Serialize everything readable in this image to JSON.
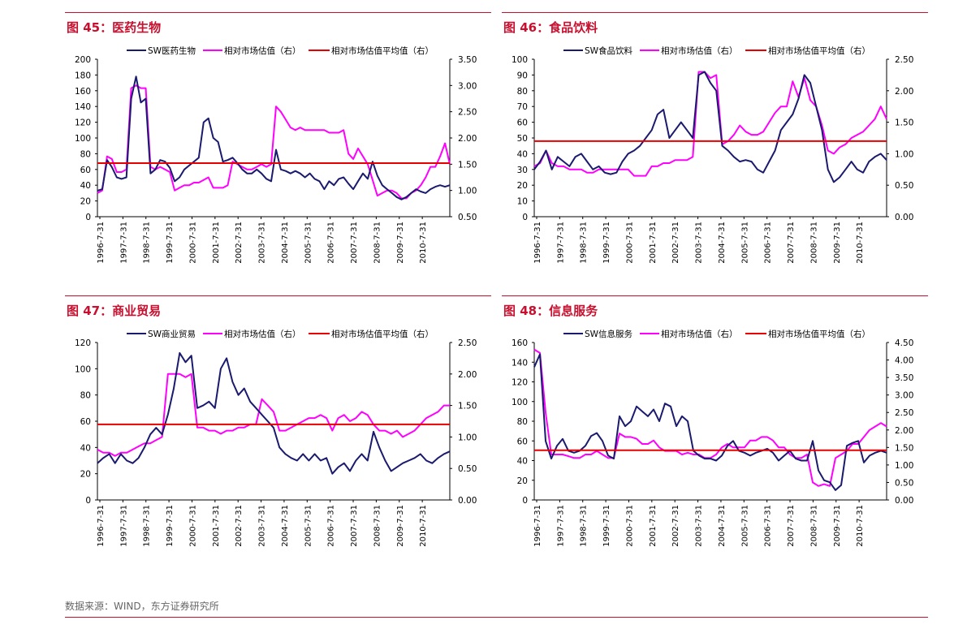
{
  "footer": {
    "source": "数据来源：WIND，东方证券研究所"
  },
  "chart_data": [
    {
      "type": "line",
      "title": "图 45：医药生物",
      "series": [
        {
          "name": "SW医药生物",
          "axis": "left",
          "color": "#1a1a6e",
          "values": [
            33,
            35,
            72,
            63,
            50,
            48,
            50,
            150,
            178,
            145,
            150,
            55,
            60,
            72,
            70,
            62,
            45,
            50,
            60,
            65,
            70,
            75,
            120,
            125,
            100,
            95,
            70,
            72,
            75,
            68,
            60,
            55,
            55,
            60,
            55,
            48,
            45,
            85,
            60,
            58,
            55,
            58,
            55,
            50,
            55,
            48,
            45,
            35,
            45,
            40,
            48,
            50,
            42,
            35,
            45,
            55,
            48,
            70,
            52,
            40,
            35,
            30,
            25,
            22,
            25,
            30,
            35,
            32,
            30,
            35,
            38,
            40,
            38,
            40
          ]
        },
        {
          "name": "相对市场估值（右）",
          "axis": "right",
          "color": "#ff00ff",
          "values": [
            0.95,
            1.0,
            1.65,
            1.6,
            1.35,
            1.35,
            1.4,
            2.95,
            3.0,
            2.95,
            2.95,
            1.45,
            1.4,
            1.45,
            1.4,
            1.35,
            1.0,
            1.05,
            1.1,
            1.1,
            1.15,
            1.15,
            1.2,
            1.25,
            1.05,
            1.05,
            1.05,
            1.1,
            1.55,
            1.5,
            1.45,
            1.4,
            1.4,
            1.45,
            1.5,
            1.45,
            1.5,
            2.6,
            2.5,
            2.35,
            2.2,
            2.15,
            2.2,
            2.15,
            2.15,
            2.15,
            2.15,
            2.15,
            2.1,
            2.1,
            2.1,
            2.15,
            1.7,
            1.6,
            1.8,
            1.65,
            1.5,
            1.2,
            0.9,
            0.95,
            1.0,
            1.0,
            0.95,
            0.85,
            0.85,
            0.95,
            1.0,
            1.1,
            1.25,
            1.45,
            1.45,
            1.65,
            1.9,
            1.5
          ]
        },
        {
          "name": "相对市场估值平均值（右）",
          "axis": "right",
          "color": "#e60000",
          "values": [
            1.52,
            1.52
          ]
        }
      ],
      "x_ticks": [
        "1996-7-31",
        "1997-7-31",
        "1998-7-31",
        "1999-7-31",
        "2000-7-31",
        "2001-7-31",
        "2002-7-31",
        "2003-7-31",
        "2004-7-31",
        "2005-7-31",
        "2006-7-31",
        "2007-7-31",
        "2008-7-31",
        "2009-7-31",
        "2010-7-31"
      ],
      "y_left": {
        "ticks": [
          "0",
          "20",
          "40",
          "60",
          "80",
          "100",
          "120",
          "140",
          "160",
          "180",
          "200"
        ],
        "min": 0,
        "max": 200
      },
      "y_right": {
        "ticks": [
          "0.50",
          "1.00",
          "1.50",
          "2.00",
          "2.50",
          "3.00",
          "3.50"
        ],
        "min": 0.5,
        "max": 3.5
      },
      "legend_position": "top"
    },
    {
      "type": "line",
      "title": "图 46：食品饮料",
      "series": [
        {
          "name": "SW食品饮料",
          "axis": "left",
          "color": "#1a1a6e",
          "values": [
            30,
            35,
            42,
            30,
            38,
            35,
            32,
            38,
            40,
            35,
            30,
            32,
            28,
            27,
            28,
            35,
            40,
            42,
            45,
            50,
            55,
            65,
            68,
            50,
            55,
            60,
            55,
            50,
            90,
            92,
            85,
            80,
            45,
            42,
            38,
            35,
            36,
            35,
            30,
            28,
            35,
            42,
            55,
            60,
            65,
            75,
            90,
            85,
            70,
            55,
            30,
            22,
            25,
            30,
            35,
            30,
            28,
            35,
            38,
            40,
            36
          ]
        },
        {
          "name": "相对市场估值（右）",
          "axis": "right",
          "color": "#ff00ff",
          "values": [
            0.8,
            0.85,
            1.05,
            0.85,
            0.8,
            0.8,
            0.75,
            0.75,
            0.75,
            0.7,
            0.7,
            0.75,
            0.75,
            0.75,
            0.75,
            0.75,
            0.75,
            0.65,
            0.65,
            0.65,
            0.8,
            0.8,
            0.85,
            0.85,
            0.9,
            0.9,
            0.9,
            0.95,
            2.3,
            2.3,
            2.2,
            2.25,
            1.15,
            1.2,
            1.3,
            1.45,
            1.35,
            1.3,
            1.3,
            1.35,
            1.5,
            1.65,
            1.75,
            1.75,
            2.15,
            1.9,
            2.2,
            1.85,
            1.75,
            1.45,
            1.05,
            1.0,
            1.1,
            1.15,
            1.25,
            1.3,
            1.35,
            1.45,
            1.55,
            1.75,
            1.55
          ]
        },
        {
          "name": "相对市场估值平均值（右）",
          "axis": "right",
          "color": "#e60000",
          "values": [
            1.2,
            1.2
          ]
        }
      ],
      "x_ticks": [
        "1996-7-31",
        "1997-7-31",
        "1998-7-31",
        "1999-7-31",
        "2000-7-31",
        "2001-7-31",
        "2002-7-31",
        "2003-7-31",
        "2004-7-31",
        "2005-7-31",
        "2006-7-31",
        "2007-7-31",
        "2008-7-31",
        "2009-7-31",
        "2010-7-31"
      ],
      "y_left": {
        "ticks": [
          "0",
          "10",
          "20",
          "30",
          "40",
          "50",
          "60",
          "70",
          "80",
          "90",
          "100"
        ],
        "min": 0,
        "max": 100
      },
      "y_right": {
        "ticks": [
          "0.00",
          "0.50",
          "1.00",
          "1.50",
          "2.00",
          "2.50"
        ],
        "min": 0,
        "max": 2.5
      },
      "legend_position": "top"
    },
    {
      "type": "line",
      "title": "图 47：商业贸易",
      "series": [
        {
          "name": "SW商业贸易",
          "axis": "left",
          "color": "#1a1a6e",
          "values": [
            28,
            32,
            35,
            28,
            35,
            30,
            28,
            32,
            40,
            50,
            55,
            50,
            65,
            85,
            112,
            105,
            110,
            70,
            72,
            75,
            70,
            100,
            108,
            90,
            80,
            85,
            75,
            70,
            65,
            60,
            55,
            40,
            35,
            32,
            30,
            35,
            30,
            35,
            30,
            32,
            20,
            25,
            28,
            22,
            30,
            35,
            30,
            52,
            40,
            30,
            22,
            25,
            28,
            30,
            32,
            35,
            30,
            28,
            32,
            35,
            37
          ]
        },
        {
          "name": "相对市场估值（右）",
          "axis": "right",
          "color": "#ff00ff",
          "values": [
            0.8,
            0.75,
            0.75,
            0.7,
            0.75,
            0.75,
            0.8,
            0.85,
            0.9,
            0.9,
            0.95,
            1.0,
            2.0,
            2.0,
            2.0,
            1.95,
            2.0,
            1.15,
            1.15,
            1.1,
            1.1,
            1.05,
            1.1,
            1.1,
            1.15,
            1.15,
            1.2,
            1.2,
            1.6,
            1.5,
            1.4,
            1.1,
            1.1,
            1.15,
            1.2,
            1.25,
            1.3,
            1.3,
            1.35,
            1.3,
            1.1,
            1.3,
            1.35,
            1.25,
            1.3,
            1.4,
            1.35,
            1.2,
            1.1,
            1.1,
            1.05,
            1.1,
            1.0,
            1.05,
            1.1,
            1.2,
            1.3,
            1.35,
            1.4,
            1.5,
            1.5
          ]
        },
        {
          "name": "相对市场估值平均值（右）",
          "axis": "right",
          "color": "#e60000",
          "values": [
            1.2,
            1.2
          ]
        }
      ],
      "x_ticks": [
        "1996-7-31",
        "1997-7-31",
        "1998-7-31",
        "1999-7-31",
        "2000-7-31",
        "2001-7-31",
        "2002-7-31",
        "2003-7-31",
        "2004-7-31",
        "2005-7-31",
        "2006-7-31",
        "2007-7-31",
        "2008-7-31",
        "2009-7-31",
        "2010-7-31"
      ],
      "y_left": {
        "ticks": [
          "0",
          "20",
          "40",
          "60",
          "80",
          "100",
          "120"
        ],
        "min": 0,
        "max": 120
      },
      "y_right": {
        "ticks": [
          "0.00",
          "0.50",
          "1.00",
          "1.50",
          "2.00",
          "2.50"
        ],
        "min": 0,
        "max": 2.5
      },
      "legend_position": "top"
    },
    {
      "type": "line",
      "title": "图 48：信息服务",
      "series": [
        {
          "name": "SW信息服务",
          "axis": "left",
          "color": "#1a1a6e",
          "values": [
            135,
            148,
            60,
            42,
            55,
            62,
            50,
            48,
            50,
            55,
            65,
            68,
            60,
            45,
            42,
            85,
            75,
            80,
            95,
            90,
            85,
            92,
            80,
            98,
            95,
            75,
            85,
            80,
            50,
            45,
            42,
            42,
            40,
            45,
            55,
            60,
            50,
            48,
            45,
            48,
            50,
            52,
            48,
            40,
            45,
            50,
            42,
            40,
            40,
            60,
            30,
            20,
            18,
            10,
            15,
            55,
            58,
            60,
            38,
            45,
            48,
            50,
            48
          ]
        },
        {
          "name": "相对市场估值（右）",
          "axis": "right",
          "color": "#ff00ff",
          "values": [
            4.3,
            4.2,
            2.5,
            1.3,
            1.3,
            1.3,
            1.25,
            1.2,
            1.2,
            1.3,
            1.3,
            1.4,
            1.3,
            1.2,
            1.2,
            1.9,
            1.8,
            1.8,
            1.75,
            1.6,
            1.6,
            1.7,
            1.5,
            1.4,
            1.4,
            1.4,
            1.3,
            1.35,
            1.3,
            1.3,
            1.2,
            1.2,
            1.3,
            1.5,
            1.6,
            1.5,
            1.5,
            1.5,
            1.7,
            1.7,
            1.8,
            1.8,
            1.7,
            1.5,
            1.5,
            1.3,
            1.2,
            1.2,
            1.3,
            0.5,
            0.4,
            0.45,
            0.4,
            1.2,
            1.3,
            1.4,
            1.6,
            1.6,
            1.8,
            2.0,
            2.1,
            2.2,
            2.1
          ]
        },
        {
          "name": "相对市场估值平均值（右）",
          "axis": "right",
          "color": "#e60000",
          "values": [
            1.42,
            1.42
          ]
        }
      ],
      "x_ticks": [
        "1996-7-31",
        "1997-7-31",
        "1998-7-31",
        "1999-7-31",
        "2000-7-31",
        "2001-7-31",
        "2002-7-31",
        "2003-7-31",
        "2004-7-31",
        "2005-7-31",
        "2006-7-31",
        "2007-7-31",
        "2008-7-31",
        "2009-7-31",
        "2010-7-31"
      ],
      "y_left": {
        "ticks": [
          "0",
          "20",
          "40",
          "60",
          "80",
          "100",
          "120",
          "140",
          "160"
        ],
        "min": 0,
        "max": 160
      },
      "y_right": {
        "ticks": [
          "0.00",
          "0.50",
          "1.00",
          "1.50",
          "2.00",
          "2.50",
          "3.00",
          "3.50",
          "4.00",
          "4.50"
        ],
        "min": 0,
        "max": 4.5
      },
      "legend_position": "top"
    }
  ]
}
